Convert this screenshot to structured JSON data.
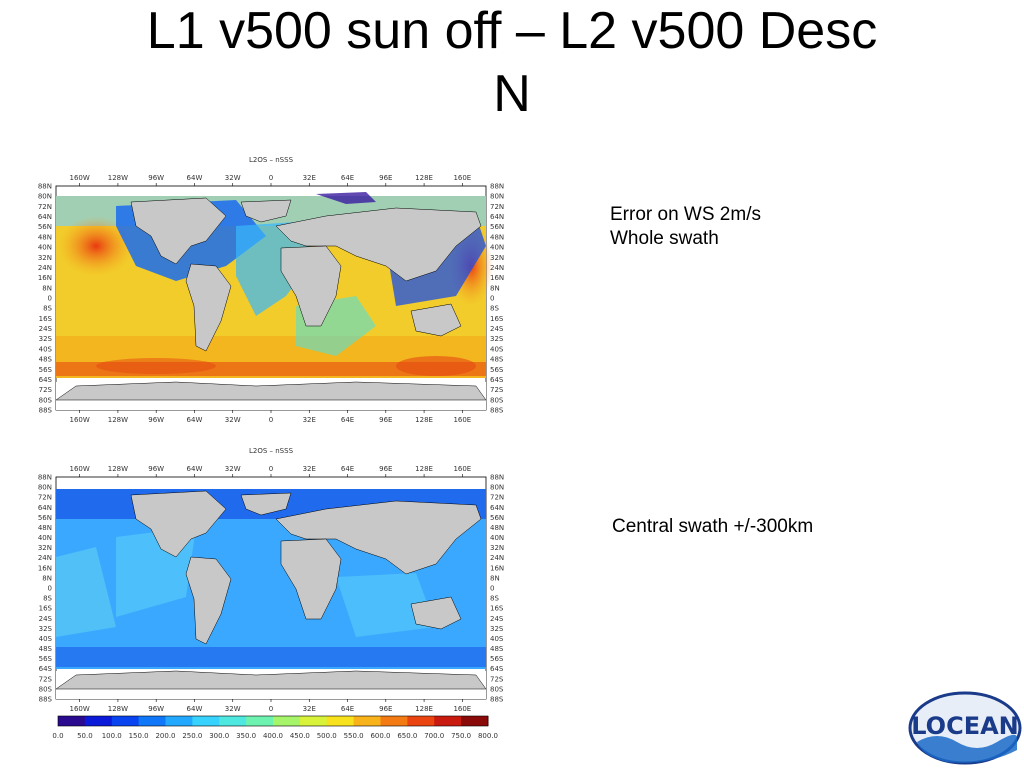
{
  "slide": {
    "title_line1": "L1 v500 sun off – L2 v500 Desc",
    "title_line2": "N",
    "note1_line1": "Error on WS 2m/s",
    "note1_line2": "Whole swath",
    "note2": "Central swath +/-300km"
  },
  "maps": [
    {
      "panel_title": "L2OS – nSSS",
      "lon_ticks": [
        "160W",
        "128W",
        "96W",
        "64W",
        "32W",
        "0",
        "32E",
        "64E",
        "96E",
        "128E",
        "160E"
      ],
      "lat_ticks": [
        "88N",
        "80N",
        "72N",
        "64N",
        "56N",
        "48N",
        "40N",
        "32N",
        "24N",
        "16N",
        "8N",
        "0",
        "8S",
        "16S",
        "24S",
        "32S",
        "40S",
        "48S",
        "56S",
        "64S",
        "72S",
        "80S",
        "88S"
      ]
    },
    {
      "panel_title": "L2OS – nSSS",
      "lon_ticks": [
        "160W",
        "128W",
        "96W",
        "64W",
        "32W",
        "0",
        "32E",
        "64E",
        "96E",
        "128E",
        "160E"
      ],
      "lat_ticks": [
        "88N",
        "80N",
        "72N",
        "64N",
        "56N",
        "48N",
        "40N",
        "32N",
        "24N",
        "16N",
        "8N",
        "0",
        "8S",
        "16S",
        "24S",
        "32S",
        "40S",
        "48S",
        "56S",
        "64S",
        "72S",
        "80S",
        "88S"
      ]
    }
  ],
  "colorbar": {
    "labels": [
      "0.0",
      "50.0",
      "100.0",
      "150.0",
      "200.0",
      "250.0",
      "300.0",
      "350.0",
      "400.0",
      "450.0",
      "500.0",
      "550.0",
      "600.0",
      "650.0",
      "700.0",
      "750.0",
      "800.0"
    ],
    "colors": [
      "#2a0a8f",
      "#0a1ad8",
      "#0a44f0",
      "#1078f8",
      "#22a8ff",
      "#38d2ff",
      "#4ee8e0",
      "#6ef2b0",
      "#a6f46a",
      "#d8f23a",
      "#f8e21e",
      "#f8b21a",
      "#f47a14",
      "#ea4410",
      "#c81a0e",
      "#8a0a0a"
    ]
  },
  "logo": {
    "text": "LOCEAN"
  }
}
